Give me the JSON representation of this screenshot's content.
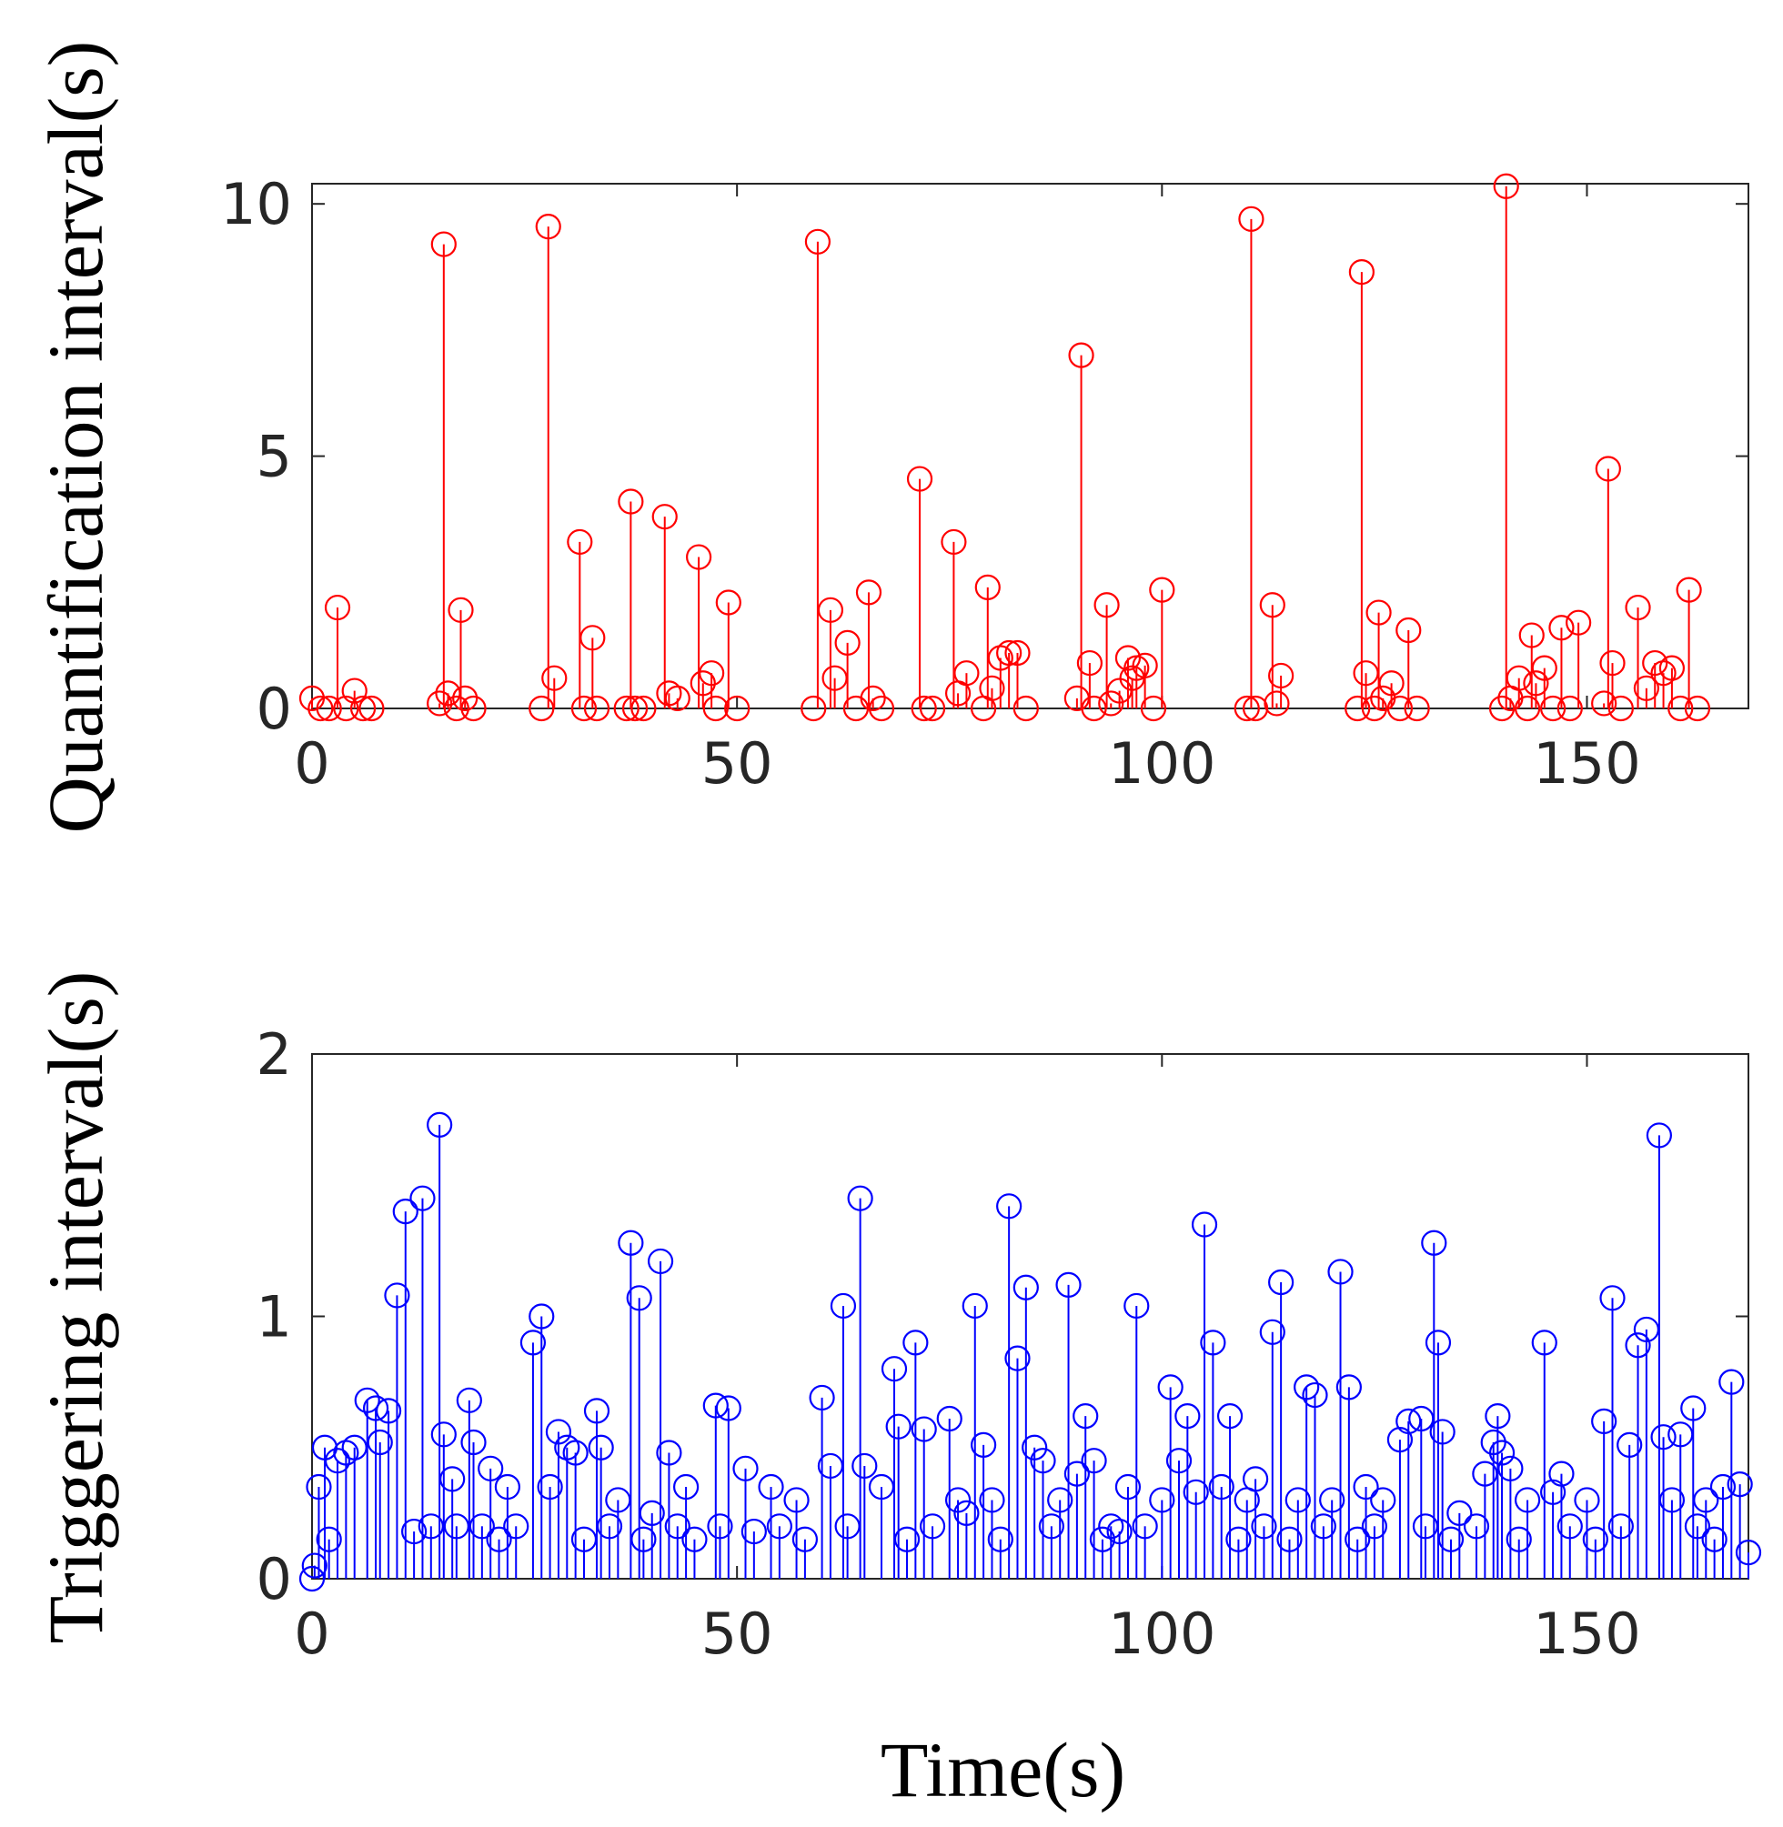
{
  "chart_data": [
    {
      "type": "stem",
      "ylabel": "Quantification interval(s)",
      "color": "#ff0000",
      "xlim": [
        0,
        169
      ],
      "xticks": [
        0,
        50,
        100,
        150
      ],
      "ylim": [
        0,
        10.4
      ],
      "yticks": [
        0,
        5,
        10
      ],
      "series": [
        {
          "x": [
            0,
            1,
            2,
            3,
            4,
            5,
            6,
            7,
            15,
            15.5,
            16,
            17,
            17.5,
            18,
            19,
            27,
            27.8,
            28.5,
            31.5,
            32,
            33,
            33.5,
            37,
            37.5,
            38,
            39,
            41.5,
            42,
            43,
            45.5,
            46,
            47,
            47.5,
            49,
            50,
            59,
            59.5,
            61,
            61.5,
            63,
            64,
            65.5,
            66,
            67,
            71.5,
            72,
            73,
            75.5,
            76,
            77,
            79,
            79.5,
            80,
            81,
            82,
            83,
            84,
            90,
            90.5,
            91.5,
            92,
            93.5,
            94,
            95,
            96,
            96.5,
            97,
            98,
            99,
            100,
            110,
            110.5,
            111,
            113,
            113.5,
            114,
            123,
            123.5,
            124,
            125,
            125.5,
            126,
            127,
            128,
            129,
            130,
            140,
            140.5,
            141,
            142,
            143,
            143.5,
            144,
            145,
            146,
            147,
            148,
            149,
            152,
            152.5,
            153,
            154,
            156,
            157,
            158,
            159,
            160,
            161,
            162,
            163
          ],
          "values": [
            0.2,
            0,
            0,
            2.0,
            0,
            0.35,
            0,
            0,
            0.1,
            9.2,
            0.3,
            0,
            1.95,
            0.2,
            0,
            0,
            9.55,
            0.6,
            3.3,
            0,
            1.4,
            0,
            0,
            4.1,
            0,
            0,
            3.8,
            0.3,
            0.2,
            3.0,
            0.5,
            0.7,
            0,
            2.1,
            0,
            0,
            9.25,
            1.95,
            0.6,
            1.3,
            0,
            2.3,
            0.2,
            0,
            4.55,
            0,
            0,
            3.3,
            0.3,
            0.7,
            0,
            2.4,
            0.4,
            1.0,
            1.1,
            1.1,
            0,
            0.2,
            7.0,
            0.9,
            0,
            2.05,
            0.1,
            0.35,
            1.0,
            0.6,
            0.8,
            0.85,
            0,
            2.35,
            0,
            9.7,
            0,
            2.05,
            0.1,
            0.65,
            0,
            8.65,
            0.7,
            0,
            1.9,
            0.2,
            0.5,
            0,
            1.55,
            0,
            0,
            10.35,
            0.2,
            0.6,
            0,
            1.45,
            0.5,
            0.8,
            0,
            1.6,
            0,
            1.7,
            0.1,
            4.75,
            0.9,
            0,
            2.0,
            0.4,
            0.9,
            0.7,
            0.8,
            0,
            2.35,
            0
          ]
        }
      ]
    },
    {
      "type": "stem",
      "ylabel": "Triggering interval(s)",
      "xlabel": "Time(s)",
      "color": "#0000ff",
      "xlim": [
        0,
        169
      ],
      "xticks": [
        0,
        50,
        100,
        150
      ],
      "ylim": [
        0,
        2
      ],
      "yticks": [
        0,
        1,
        2
      ],
      "series": [
        {
          "x": [
            0,
            0.3,
            0.8,
            1.5,
            2,
            3,
            4,
            5,
            6.5,
            7.5,
            8,
            9,
            10,
            11,
            12,
            13,
            14,
            15,
            15.5,
            16.5,
            17,
            18.5,
            19,
            20,
            21,
            22,
            23,
            24,
            26,
            27,
            28,
            29,
            30,
            31,
            32,
            33.5,
            34,
            35,
            36,
            37.5,
            38.5,
            39,
            40,
            41,
            42,
            43,
            44,
            45,
            47.5,
            48,
            49,
            51,
            52,
            54,
            55,
            57,
            58,
            60,
            61,
            62.5,
            63,
            64.5,
            65,
            67,
            68.5,
            69,
            70,
            71,
            72,
            73,
            75,
            76,
            77,
            78,
            79,
            80,
            81,
            82,
            83,
            84,
            85,
            86,
            87,
            88,
            89,
            90,
            91,
            92,
            93,
            94,
            95,
            96,
            97,
            98,
            100,
            101,
            102,
            103,
            104,
            105,
            106,
            107,
            108,
            109,
            110,
            111,
            112,
            113,
            114,
            115,
            116,
            117,
            118,
            119,
            120,
            121,
            122,
            123,
            124,
            125,
            126,
            128,
            129,
            130.5,
            131,
            132,
            132.5,
            133,
            134,
            135,
            137,
            138,
            139,
            139.5,
            140,
            141,
            142,
            143,
            145,
            146,
            147,
            148,
            150,
            151,
            152,
            153,
            154,
            155,
            156,
            157,
            158.5,
            159,
            160,
            161,
            162.5,
            163,
            164,
            165,
            166,
            167,
            168,
            169
          ],
          "values": [
            0,
            0.05,
            0.35,
            0.5,
            0.15,
            0.45,
            0.48,
            0.5,
            0.68,
            0.65,
            0.52,
            0.64,
            1.08,
            1.4,
            0.18,
            1.45,
            0.2,
            1.73,
            0.55,
            0.38,
            0.2,
            0.68,
            0.52,
            0.2,
            0.42,
            0.15,
            0.35,
            0.2,
            0.9,
            1.0,
            0.35,
            0.56,
            0.5,
            0.48,
            0.15,
            0.64,
            0.5,
            0.2,
            0.3,
            1.28,
            1.07,
            0.15,
            0.25,
            1.21,
            0.48,
            0.2,
            0.35,
            0.15,
            0.66,
            0.2,
            0.65,
            0.42,
            0.18,
            0.35,
            0.2,
            0.3,
            0.15,
            0.69,
            0.43,
            1.04,
            0.2,
            1.45,
            0.43,
            0.35,
            0.8,
            0.58,
            0.15,
            0.9,
            0.57,
            0.2,
            0.61,
            0.3,
            0.25,
            1.04,
            0.51,
            0.3,
            0.15,
            1.42,
            0.84,
            1.11,
            0.5,
            0.45,
            0.2,
            0.3,
            1.12,
            0.4,
            0.62,
            0.45,
            0.15,
            0.2,
            0.18,
            0.35,
            1.04,
            0.2,
            0.3,
            0.73,
            0.45,
            0.62,
            0.33,
            1.35,
            0.9,
            0.35,
            0.62,
            0.15,
            0.3,
            0.38,
            0.2,
            0.94,
            1.13,
            0.15,
            0.3,
            0.73,
            0.7,
            0.2,
            0.3,
            1.17,
            0.73,
            0.15,
            0.35,
            0.2,
            0.3,
            0.53,
            0.6,
            0.61,
            0.2,
            1.28,
            0.9,
            0.56,
            0.15,
            0.25,
            0.2,
            0.4,
            0.52,
            0.62,
            0.48,
            0.42,
            0.15,
            0.3,
            0.9,
            0.33,
            0.4,
            0.2,
            0.3,
            0.15,
            0.6,
            1.07,
            0.2,
            0.51,
            0.89,
            0.95,
            1.69,
            0.54,
            0.3,
            0.55,
            0.65,
            0.2,
            0.3,
            0.15,
            0.35,
            0.75,
            0.36,
            0.1
          ]
        }
      ]
    }
  ]
}
